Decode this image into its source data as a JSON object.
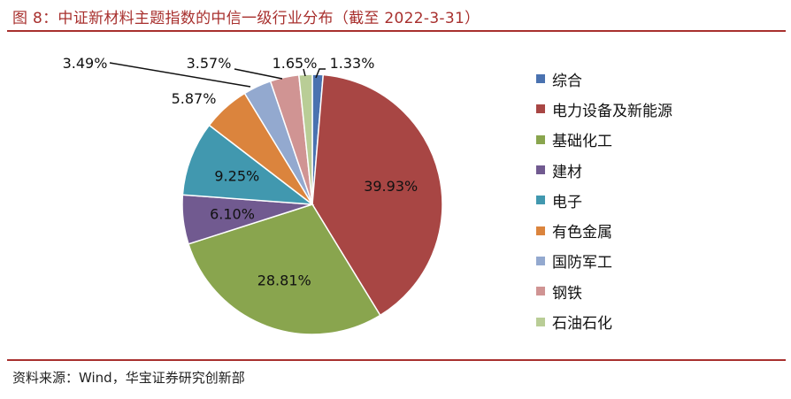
{
  "figure": {
    "title": "图 8：中证新材料主题指数的中信一级行业分布（截至 2022-3-31）",
    "source": "资料来源：Wind，华宝证券研究创新部"
  },
  "chart_data": {
    "type": "pie",
    "title": "图 8：中证新材料主题指数的中信一级行业分布（截至 2022-3-31）",
    "unit": "%",
    "legend_position": "right",
    "start_angle_deg": 0,
    "direction": "clockwise",
    "slices": [
      {
        "label": "综合",
        "value": 1.33,
        "value_label": "1.33%",
        "color": "#4a72b0",
        "label_placement": "outside"
      },
      {
        "label": "电力设备及新能源",
        "value": 39.93,
        "value_label": "39.93%",
        "color": "#a84644",
        "label_placement": "inside"
      },
      {
        "label": "基础化工",
        "value": 28.81,
        "value_label": "28.81%",
        "color": "#89a54e",
        "label_placement": "inside"
      },
      {
        "label": "建材",
        "value": 6.1,
        "value_label": "6.10%",
        "color": "#715a90",
        "label_placement": "inside"
      },
      {
        "label": "电子",
        "value": 9.25,
        "value_label": "9.25%",
        "color": "#4198af",
        "label_placement": "inside"
      },
      {
        "label": "有色金属",
        "value": 5.87,
        "value_label": "5.87%",
        "color": "#db843d",
        "label_placement": "outside"
      },
      {
        "label": "国防军工",
        "value": 3.49,
        "value_label": "3.49%",
        "color": "#93a9cf",
        "label_placement": "outside"
      },
      {
        "label": "钢铁",
        "value": 3.57,
        "value_label": "3.57%",
        "color": "#d09493",
        "label_placement": "outside"
      },
      {
        "label": "石油石化",
        "value": 1.65,
        "value_label": "1.65%",
        "color": "#b9cd96",
        "label_placement": "outside"
      }
    ]
  }
}
